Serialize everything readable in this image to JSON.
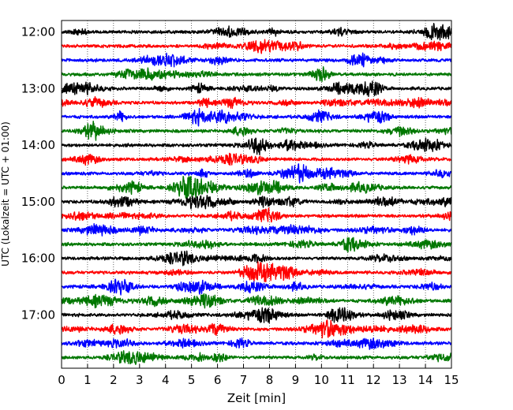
{
  "chart_data": {
    "type": "line",
    "title": "",
    "xlabel": "Zeit  [min]",
    "ylabel": "UTC (Lokalzeit = UTC + 01:00)",
    "xlim": [
      0,
      15
    ],
    "x_ticks": [
      "0",
      "1",
      "2",
      "3",
      "4",
      "5",
      "6",
      "7",
      "8",
      "9",
      "10",
      "11",
      "12",
      "13",
      "14",
      "15"
    ],
    "y_ticks": [
      "12:00",
      "13:00",
      "14:00",
      "15:00",
      "16:00",
      "17:00"
    ],
    "grid": "vertical dotted lines at every minute",
    "trace_interval_min": 15,
    "trace_duration_min": 15,
    "trace_colors": [
      "#000000",
      "#ff0000",
      "#0000ff",
      "#007700"
    ],
    "traces": [
      {
        "start": "12:00",
        "color": "#000000"
      },
      {
        "start": "12:15",
        "color": "#ff0000"
      },
      {
        "start": "12:30",
        "color": "#0000ff"
      },
      {
        "start": "12:45",
        "color": "#007700"
      },
      {
        "start": "13:00",
        "color": "#000000"
      },
      {
        "start": "13:15",
        "color": "#ff0000"
      },
      {
        "start": "13:30",
        "color": "#0000ff"
      },
      {
        "start": "13:45",
        "color": "#007700"
      },
      {
        "start": "14:00",
        "color": "#000000"
      },
      {
        "start": "14:15",
        "color": "#ff0000"
      },
      {
        "start": "14:30",
        "color": "#0000ff"
      },
      {
        "start": "14:45",
        "color": "#007700"
      },
      {
        "start": "15:00",
        "color": "#000000"
      },
      {
        "start": "15:15",
        "color": "#ff0000"
      },
      {
        "start": "15:30",
        "color": "#0000ff"
      },
      {
        "start": "15:45",
        "color": "#007700"
      },
      {
        "start": "16:00",
        "color": "#000000"
      },
      {
        "start": "16:15",
        "color": "#ff0000"
      },
      {
        "start": "16:30",
        "color": "#0000ff"
      },
      {
        "start": "16:45",
        "color": "#007700"
      },
      {
        "start": "17:00",
        "color": "#000000"
      },
      {
        "start": "17:15",
        "color": "#ff0000"
      },
      {
        "start": "17:30",
        "color": "#0000ff"
      },
      {
        "start": "17:45",
        "color": "#007700"
      }
    ]
  }
}
